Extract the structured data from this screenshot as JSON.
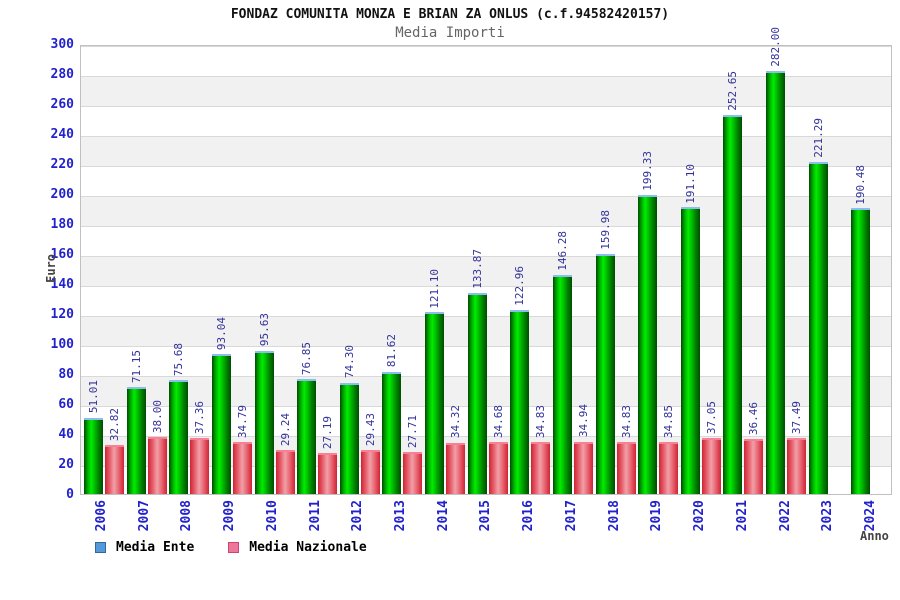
{
  "header": {
    "title": "FONDAZ COMUNITA MONZA E BRIAN ZA ONLUS (c.f.94582420157)",
    "subtitle": "Media Importi"
  },
  "axes": {
    "y_axis_label": "Euro",
    "x_axis_label": "Anno",
    "y_ticks": [
      0,
      20,
      40,
      60,
      80,
      100,
      120,
      140,
      160,
      180,
      200,
      220,
      240,
      260,
      280,
      300
    ]
  },
  "legend": {
    "items": [
      {
        "label": "Media Ente",
        "swatch_color": "#5599dd",
        "swatch_border": "#336699"
      },
      {
        "label": "Media Nazionale",
        "swatch_color": "#ee7799",
        "swatch_border": "#cc4477"
      }
    ]
  },
  "chart_data": {
    "type": "bar",
    "title": "FONDAZ COMUNITA MONZA E BRIAN ZA ONLUS (c.f.94582420157)",
    "subtitle": "Media Importi",
    "xlabel": "Anno",
    "ylabel": "Euro",
    "ylim": [
      0,
      300
    ],
    "grid": true,
    "legend_position": "bottom-left",
    "categories": [
      "2006",
      "2007",
      "2008",
      "2009",
      "2010",
      "2011",
      "2012",
      "2013",
      "2014",
      "2015",
      "2016",
      "2017",
      "2018",
      "2019",
      "2020",
      "2021",
      "2022",
      "2023",
      "2024"
    ],
    "series": [
      {
        "name": "Media Ente",
        "color": "#00cc00",
        "values": [
          51.01,
          71.15,
          75.68,
          93.04,
          95.63,
          76.85,
          74.3,
          81.62,
          121.1,
          133.87,
          122.96,
          146.28,
          159.98,
          199.33,
          191.1,
          252.65,
          282.0,
          221.29,
          190.48
        ]
      },
      {
        "name": "Media Nazionale",
        "color": "#ee5566",
        "values": [
          32.82,
          38.0,
          37.36,
          34.79,
          29.24,
          27.19,
          29.43,
          27.71,
          34.32,
          34.68,
          34.83,
          34.94,
          34.83,
          34.85,
          37.05,
          36.46,
          37.49,
          null,
          null
        ]
      }
    ]
  },
  "colors": {
    "bar_green": "#00cc00",
    "bar_red": "#ee5566",
    "value_label": "#333399",
    "axis_text": "#2222cc",
    "band_gray": "#f1f1f1",
    "plot_border": "#c0c0c0"
  }
}
